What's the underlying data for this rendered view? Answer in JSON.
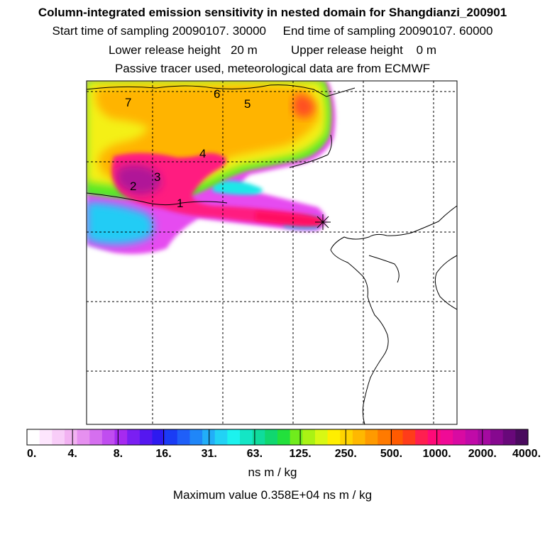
{
  "header": {
    "title": "Column-integrated emission sensitivity in nested domain for Shangdianzi_200901",
    "sampling_line": "Start time of sampling 20090107. 30000     End time of sampling 20090107. 60000",
    "release_line": "Lower release height   20 m          Upper release height    0 m",
    "tracer_line": "Passive tracer used, meteorological data are from ECMWF"
  },
  "map": {
    "plume_labels": [
      "1",
      "2",
      "3",
      "4",
      "5",
      "6",
      "7"
    ],
    "receptor_marker": "star-icon"
  },
  "legend": {
    "tick_labels": [
      "0.",
      "4.",
      "8.",
      "16.",
      "31.",
      "63.",
      "125.",
      "250.",
      "500.",
      "1000.",
      "2000.",
      "4000."
    ],
    "colors": [
      "#ffffff",
      "#fde6fd",
      "#f8cdf8",
      "#f2b2f2",
      "#e690f0",
      "#d56fef",
      "#c04df0",
      "#a62af0",
      "#7a1ff2",
      "#5517f0",
      "#2d1af0",
      "#1a3cf5",
      "#1f5ff8",
      "#1f86f8",
      "#22aef8",
      "#22d2f5",
      "#1cf2ee",
      "#14e6c5",
      "#0fdc9c",
      "#10d76f",
      "#22e03c",
      "#70ec1c",
      "#aaf214",
      "#d8f814",
      "#ffee00",
      "#ffd400",
      "#ffb800",
      "#ff9a00",
      "#ff7a00",
      "#ff5a00",
      "#ff3c1a",
      "#ff1f50",
      "#ff0a78",
      "#f00a96",
      "#d80aa2",
      "#c00aa8",
      "#a40aa0",
      "#86088f",
      "#68087a",
      "#4a0a5e"
    ],
    "unit": "ns m / kg",
    "max_value_text": "Maximum value  0.358E+04 ns m / kg"
  }
}
